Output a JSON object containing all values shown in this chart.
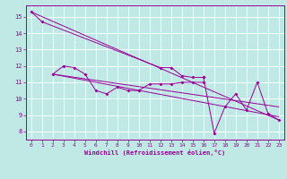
{
  "series": [
    {
      "x": [
        0,
        1,
        12,
        13,
        14,
        15,
        16
      ],
      "y": [
        15.3,
        14.7,
        11.9,
        11.9,
        11.4,
        11.3,
        11.3
      ]
    },
    {
      "x": [
        2,
        3,
        4,
        5,
        6,
        7,
        8,
        9,
        10
      ],
      "y": [
        11.5,
        12.0,
        11.9,
        11.5,
        10.5,
        10.3,
        10.7,
        10.5,
        10.5
      ]
    },
    {
      "x": [
        10,
        11,
        12,
        13,
        14,
        15,
        16
      ],
      "y": [
        10.5,
        10.9,
        10.9,
        10.9,
        11.0,
        11.0,
        11.0
      ]
    },
    {
      "x": [
        16,
        17,
        18,
        19,
        20,
        21,
        22,
        23
      ],
      "y": [
        11.3,
        7.9,
        9.5,
        10.3,
        9.3,
        11.0,
        9.1,
        8.7
      ]
    }
  ],
  "trend_lines": [
    {
      "x": [
        0,
        23
      ],
      "y": [
        15.3,
        8.7
      ]
    },
    {
      "x": [
        2,
        23
      ],
      "y": [
        11.5,
        9.5
      ]
    },
    {
      "x": [
        2,
        23
      ],
      "y": [
        11.5,
        8.9
      ]
    }
  ],
  "line_color": "#990099",
  "bg_color": "#c0e8e4",
  "grid_color": "#ffffff",
  "xlabel": "Windchill (Refroidissement éolien,°C)",
  "ylim": [
    7.5,
    15.7
  ],
  "xlim": [
    -0.5,
    23.5
  ],
  "yticks": [
    8,
    9,
    10,
    11,
    12,
    13,
    14,
    15
  ],
  "xticks": [
    0,
    1,
    2,
    3,
    4,
    5,
    6,
    7,
    8,
    9,
    10,
    11,
    12,
    13,
    14,
    15,
    16,
    17,
    18,
    19,
    20,
    21,
    22,
    23
  ]
}
